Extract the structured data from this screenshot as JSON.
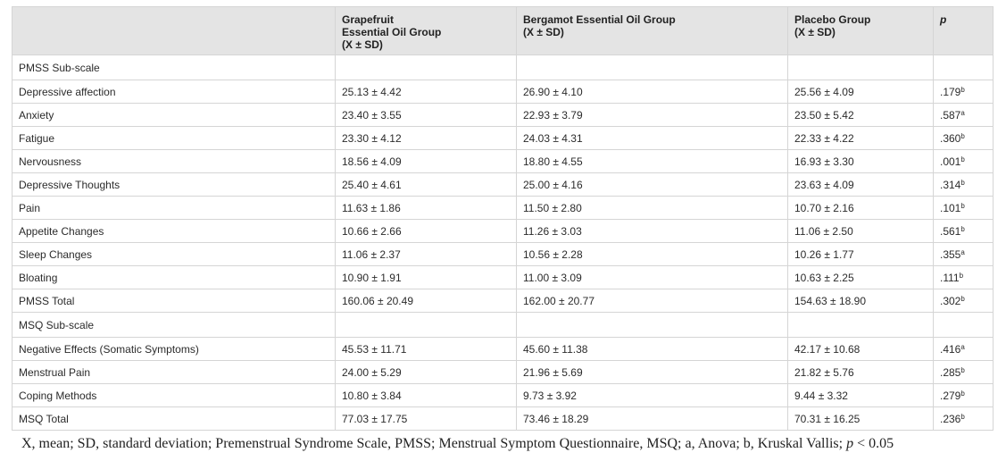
{
  "table": {
    "headers": [
      "",
      [
        "Grapefruit",
        "Essential Oil Group",
        "(X ± SD)"
      ],
      [
        "Bergamot Essential Oil Group",
        "(X ± SD)"
      ],
      [
        "Placebo Group",
        "(X ± SD)"
      ],
      "p"
    ],
    "rows": [
      {
        "type": "section",
        "label": "PMSS Sub-scale"
      },
      {
        "type": "data",
        "label": "Depressive affection",
        "grapefruit": "25.13 ± 4.42",
        "bergamot": "26.90 ± 4.10",
        "placebo": "25.56 ± 4.09",
        "p": ".179",
        "test": "b"
      },
      {
        "type": "data",
        "label": "Anxiety",
        "grapefruit": "23.40 ± 3.55",
        "bergamot": "22.93 ± 3.79",
        "placebo": "23.50 ± 5.42",
        "p": ".587",
        "test": "a"
      },
      {
        "type": "data",
        "label": "Fatigue",
        "grapefruit": "23.30 ± 4.12",
        "bergamot": "24.03 ± 4.31",
        "placebo": "22.33 ± 4.22",
        "p": ".360",
        "test": "b"
      },
      {
        "type": "data",
        "label": "Nervousness",
        "grapefruit": "18.56 ± 4.09",
        "bergamot": "18.80 ± 4.55",
        "placebo": "16.93 ± 3.30",
        "p": ".001",
        "test": "b"
      },
      {
        "type": "data",
        "label": "Depressive Thoughts",
        "grapefruit": "25.40 ± 4.61",
        "bergamot": "25.00 ± 4.16",
        "placebo": "23.63 ± 4.09",
        "p": ".314",
        "test": "b"
      },
      {
        "type": "data",
        "label": "Pain",
        "grapefruit": "11.63 ± 1.86",
        "bergamot": "11.50 ± 2.80",
        "placebo": "10.70 ± 2.16",
        "p": ".101",
        "test": "b"
      },
      {
        "type": "data",
        "label": "Appetite Changes",
        "grapefruit": "10.66 ± 2.66",
        "bergamot": "11.26 ± 3.03",
        "placebo": "11.06 ± 2.50",
        "p": ".561",
        "test": "b"
      },
      {
        "type": "data",
        "label": "Sleep Changes",
        "grapefruit": "11.06 ± 2.37",
        "bergamot": "10.56 ± 2.28",
        "placebo": "10.26 ± 1.77",
        "p": ".355",
        "test": "a"
      },
      {
        "type": "data",
        "label": "Bloating",
        "grapefruit": "10.90 ± 1.91",
        "bergamot": "11.00 ± 3.09",
        "placebo": "10.63 ± 2.25",
        "p": ".111",
        "test": "b"
      },
      {
        "type": "data",
        "label": "PMSS Total",
        "grapefruit": "160.06 ± 20.49",
        "bergamot": "162.00 ± 20.77",
        "placebo": "154.63 ± 18.90",
        "p": ".302",
        "test": "b"
      },
      {
        "type": "section",
        "label": "MSQ Sub-scale"
      },
      {
        "type": "data",
        "label": "Negative Effects (Somatic Symptoms)",
        "grapefruit": "45.53 ± 11.71",
        "bergamot": "45.60 ± 11.38",
        "placebo": "42.17 ± 10.68",
        "p": ".416",
        "test": "a"
      },
      {
        "type": "data",
        "label": "Menstrual Pain",
        "grapefruit": "24.00 ± 5.29",
        "bergamot": "21.96 ± 5.69",
        "placebo": "21.82 ± 5.76",
        "p": ".285",
        "test": "b"
      },
      {
        "type": "data",
        "label": "Coping Methods",
        "grapefruit": "10.80 ± 3.84",
        "bergamot": "9.73 ± 3.92",
        "placebo": "9.44 ± 3.32",
        "p": ".279",
        "test": "b"
      },
      {
        "type": "data",
        "label": "MSQ Total",
        "grapefruit": "77.03 ± 17.75",
        "bergamot": "73.46 ± 18.29",
        "placebo": "70.31 ± 16.25",
        "p": ".236",
        "test": "b"
      }
    ]
  },
  "caption": {
    "text": "X, mean; SD, standard deviation; Premenstrual Syndrome Scale, PMSS; Menstrual Symptom Questionnaire, MSQ; a, Anova; b, Kruskal Vallis; ",
    "p_symbol": "p",
    "tail": " < 0.05"
  }
}
